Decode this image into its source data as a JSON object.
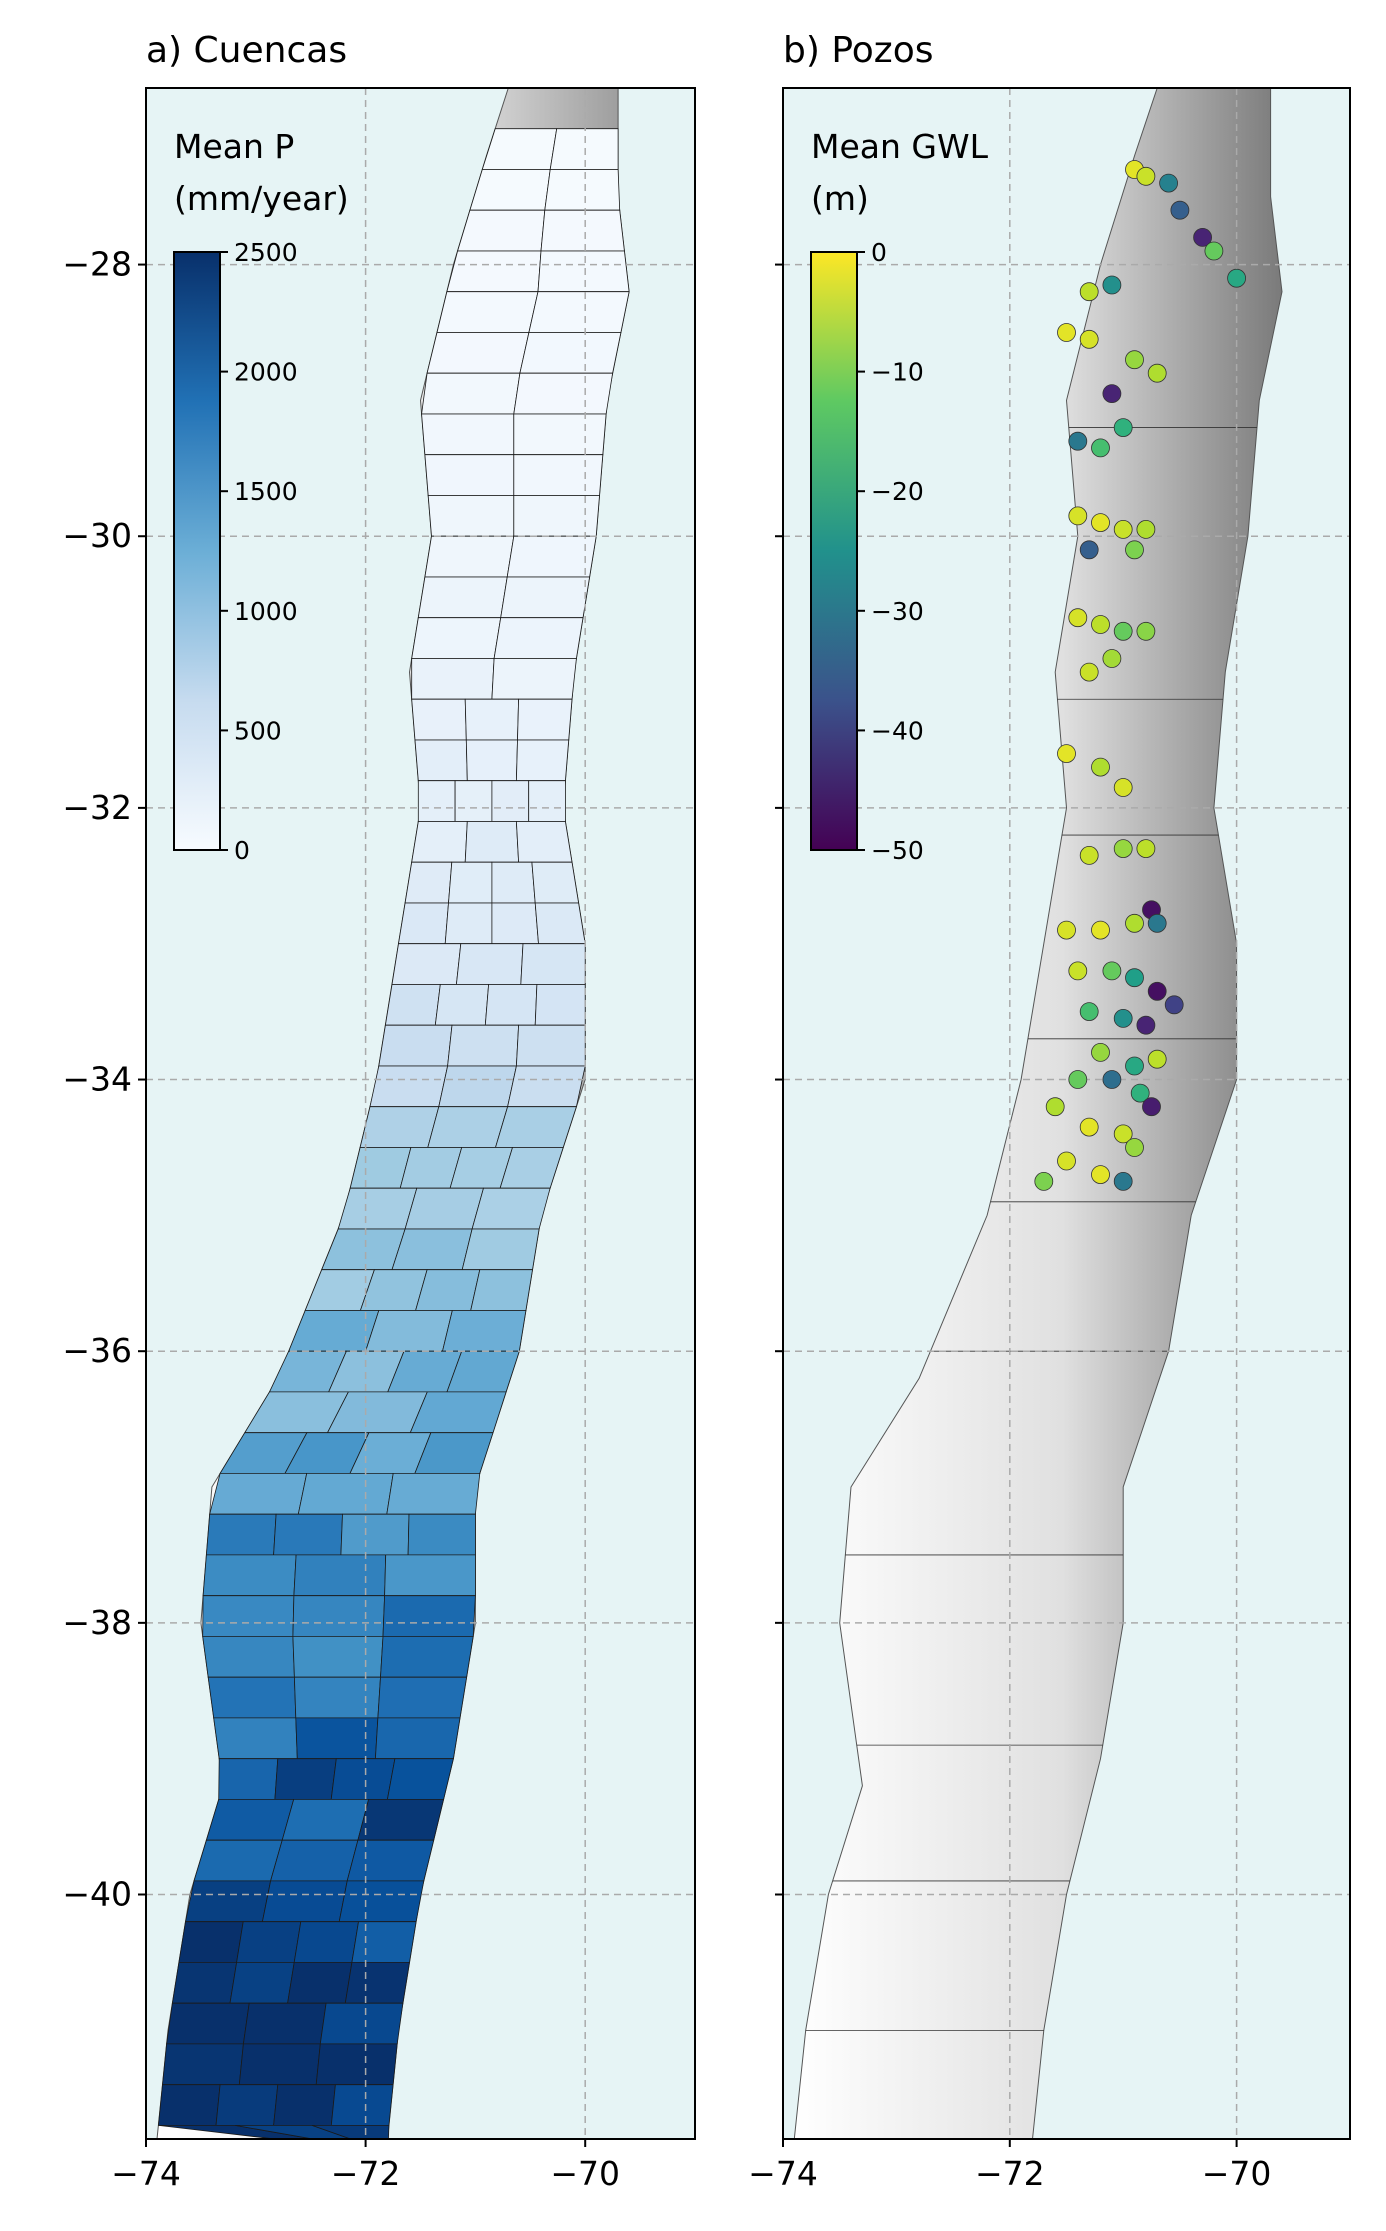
{
  "panels": [
    {
      "title": "a) Cuencas",
      "colorbar": {
        "title_line1": "Mean P",
        "title_line2": "(mm/year)",
        "ticks": [
          "2500",
          "2000",
          "1500",
          "1000",
          "500",
          "0"
        ],
        "colormap": "Blues",
        "range": [
          0,
          2500
        ]
      },
      "x_ticks": [
        "−74",
        "−72",
        "−70"
      ],
      "y_ticks": [
        "−28",
        "−30",
        "−32",
        "−34",
        "−36",
        "−38",
        "−40"
      ]
    },
    {
      "title": "b) Pozos",
      "colorbar": {
        "title_line1": "Mean GWL",
        "title_line2": "(m)",
        "ticks": [
          "0",
          "−10",
          "−20",
          "−30",
          "−40",
          "−50"
        ],
        "colormap": "viridis",
        "range": [
          -50,
          0
        ]
      },
      "x_ticks": [
        "−74",
        "−72",
        "−70"
      ]
    }
  ],
  "chart_data": {
    "type": "scatter",
    "xlim": [
      -74,
      -69
    ],
    "ylim": [
      -41.8,
      -26.7
    ],
    "grid": true,
    "legend": "colorbar top-left",
    "colors": {
      "ocean": "#e6f4f5",
      "land": "#f5f5f5",
      "borders": "#222222"
    },
    "precip_by_lat": [
      {
        "lat": -27.0,
        "p": 20
      },
      {
        "lat": -29.0,
        "p": 60
      },
      {
        "lat": -31.0,
        "p": 150
      },
      {
        "lat": -32.5,
        "p": 300
      },
      {
        "lat": -33.5,
        "p": 450
      },
      {
        "lat": -34.5,
        "p": 800
      },
      {
        "lat": -35.5,
        "p": 1050
      },
      {
        "lat": -36.5,
        "p": 1250
      },
      {
        "lat": -37.5,
        "p": 1700
      },
      {
        "lat": -38.5,
        "p": 1900
      },
      {
        "lat": -39.5,
        "p": 2200
      },
      {
        "lat": -40.5,
        "p": 2350
      },
      {
        "lat": -41.5,
        "p": 2300
      }
    ],
    "wells": [
      {
        "x": -70.9,
        "y": -27.3,
        "gwl": -2
      },
      {
        "x": -70.8,
        "y": -27.35,
        "gwl": -4
      },
      {
        "x": -70.6,
        "y": -27.4,
        "gwl": -28
      },
      {
        "x": -70.5,
        "y": -27.6,
        "gwl": -35
      },
      {
        "x": -70.3,
        "y": -27.8,
        "gwl": -45
      },
      {
        "x": -70.2,
        "y": -27.9,
        "gwl": -12
      },
      {
        "x": -70.0,
        "y": -28.1,
        "gwl": -20
      },
      {
        "x": -71.3,
        "y": -28.2,
        "gwl": -5
      },
      {
        "x": -71.1,
        "y": -28.15,
        "gwl": -25
      },
      {
        "x": -71.5,
        "y": -28.5,
        "gwl": -2
      },
      {
        "x": -71.3,
        "y": -28.55,
        "gwl": -3
      },
      {
        "x": -70.9,
        "y": -28.7,
        "gwl": -8
      },
      {
        "x": -70.7,
        "y": -28.8,
        "gwl": -6
      },
      {
        "x": -71.1,
        "y": -28.95,
        "gwl": -45
      },
      {
        "x": -71.4,
        "y": -29.3,
        "gwl": -30
      },
      {
        "x": -71.2,
        "y": -29.35,
        "gwl": -15
      },
      {
        "x": -71.0,
        "y": -29.2,
        "gwl": -18
      },
      {
        "x": -71.4,
        "y": -29.85,
        "gwl": -3
      },
      {
        "x": -71.2,
        "y": -29.9,
        "gwl": -2
      },
      {
        "x": -71.0,
        "y": -29.95,
        "gwl": -4
      },
      {
        "x": -70.8,
        "y": -29.95,
        "gwl": -6
      },
      {
        "x": -71.3,
        "y": -30.1,
        "gwl": -35
      },
      {
        "x": -70.9,
        "y": -30.1,
        "gwl": -10
      },
      {
        "x": -71.4,
        "y": -30.6,
        "gwl": -3
      },
      {
        "x": -71.2,
        "y": -30.65,
        "gwl": -5
      },
      {
        "x": -71.0,
        "y": -30.7,
        "gwl": -12
      },
      {
        "x": -70.8,
        "y": -30.7,
        "gwl": -9
      },
      {
        "x": -71.3,
        "y": -31.0,
        "gwl": -4
      },
      {
        "x": -71.1,
        "y": -30.9,
        "gwl": -7
      },
      {
        "x": -71.5,
        "y": -31.6,
        "gwl": -2
      },
      {
        "x": -71.2,
        "y": -31.7,
        "gwl": -6
      },
      {
        "x": -71.0,
        "y": -31.85,
        "gwl": -3
      },
      {
        "x": -71.3,
        "y": -32.35,
        "gwl": -4
      },
      {
        "x": -71.0,
        "y": -32.3,
        "gwl": -8
      },
      {
        "x": -70.8,
        "y": -32.3,
        "gwl": -5
      },
      {
        "x": -71.5,
        "y": -32.9,
        "gwl": -3
      },
      {
        "x": -71.2,
        "y": -32.9,
        "gwl": -2
      },
      {
        "x": -70.9,
        "y": -32.85,
        "gwl": -6
      },
      {
        "x": -70.75,
        "y": -32.75,
        "gwl": -48
      },
      {
        "x": -70.7,
        "y": -32.85,
        "gwl": -30
      },
      {
        "x": -71.4,
        "y": -33.2,
        "gwl": -4
      },
      {
        "x": -71.1,
        "y": -33.2,
        "gwl": -12
      },
      {
        "x": -70.9,
        "y": -33.25,
        "gwl": -22
      },
      {
        "x": -70.7,
        "y": -33.35,
        "gwl": -48
      },
      {
        "x": -70.55,
        "y": -33.45,
        "gwl": -40
      },
      {
        "x": -71.3,
        "y": -33.5,
        "gwl": -15
      },
      {
        "x": -71.0,
        "y": -33.55,
        "gwl": -25
      },
      {
        "x": -70.8,
        "y": -33.6,
        "gwl": -45
      },
      {
        "x": -71.2,
        "y": -33.8,
        "gwl": -8
      },
      {
        "x": -70.9,
        "y": -33.9,
        "gwl": -20
      },
      {
        "x": -70.7,
        "y": -33.85,
        "gwl": -5
      },
      {
        "x": -71.4,
        "y": -34.0,
        "gwl": -12
      },
      {
        "x": -71.1,
        "y": -34.0,
        "gwl": -32
      },
      {
        "x": -70.85,
        "y": -34.1,
        "gwl": -18
      },
      {
        "x": -70.75,
        "y": -34.2,
        "gwl": -46
      },
      {
        "x": -71.6,
        "y": -34.2,
        "gwl": -6
      },
      {
        "x": -71.3,
        "y": -34.35,
        "gwl": -2
      },
      {
        "x": -71.0,
        "y": -34.4,
        "gwl": -4
      },
      {
        "x": -70.9,
        "y": -34.5,
        "gwl": -8
      },
      {
        "x": -71.5,
        "y": -34.6,
        "gwl": -3
      },
      {
        "x": -71.2,
        "y": -34.7,
        "gwl": -2
      },
      {
        "x": -71.0,
        "y": -34.75,
        "gwl": -30
      },
      {
        "x": -71.7,
        "y": -34.75,
        "gwl": -10
      }
    ]
  }
}
